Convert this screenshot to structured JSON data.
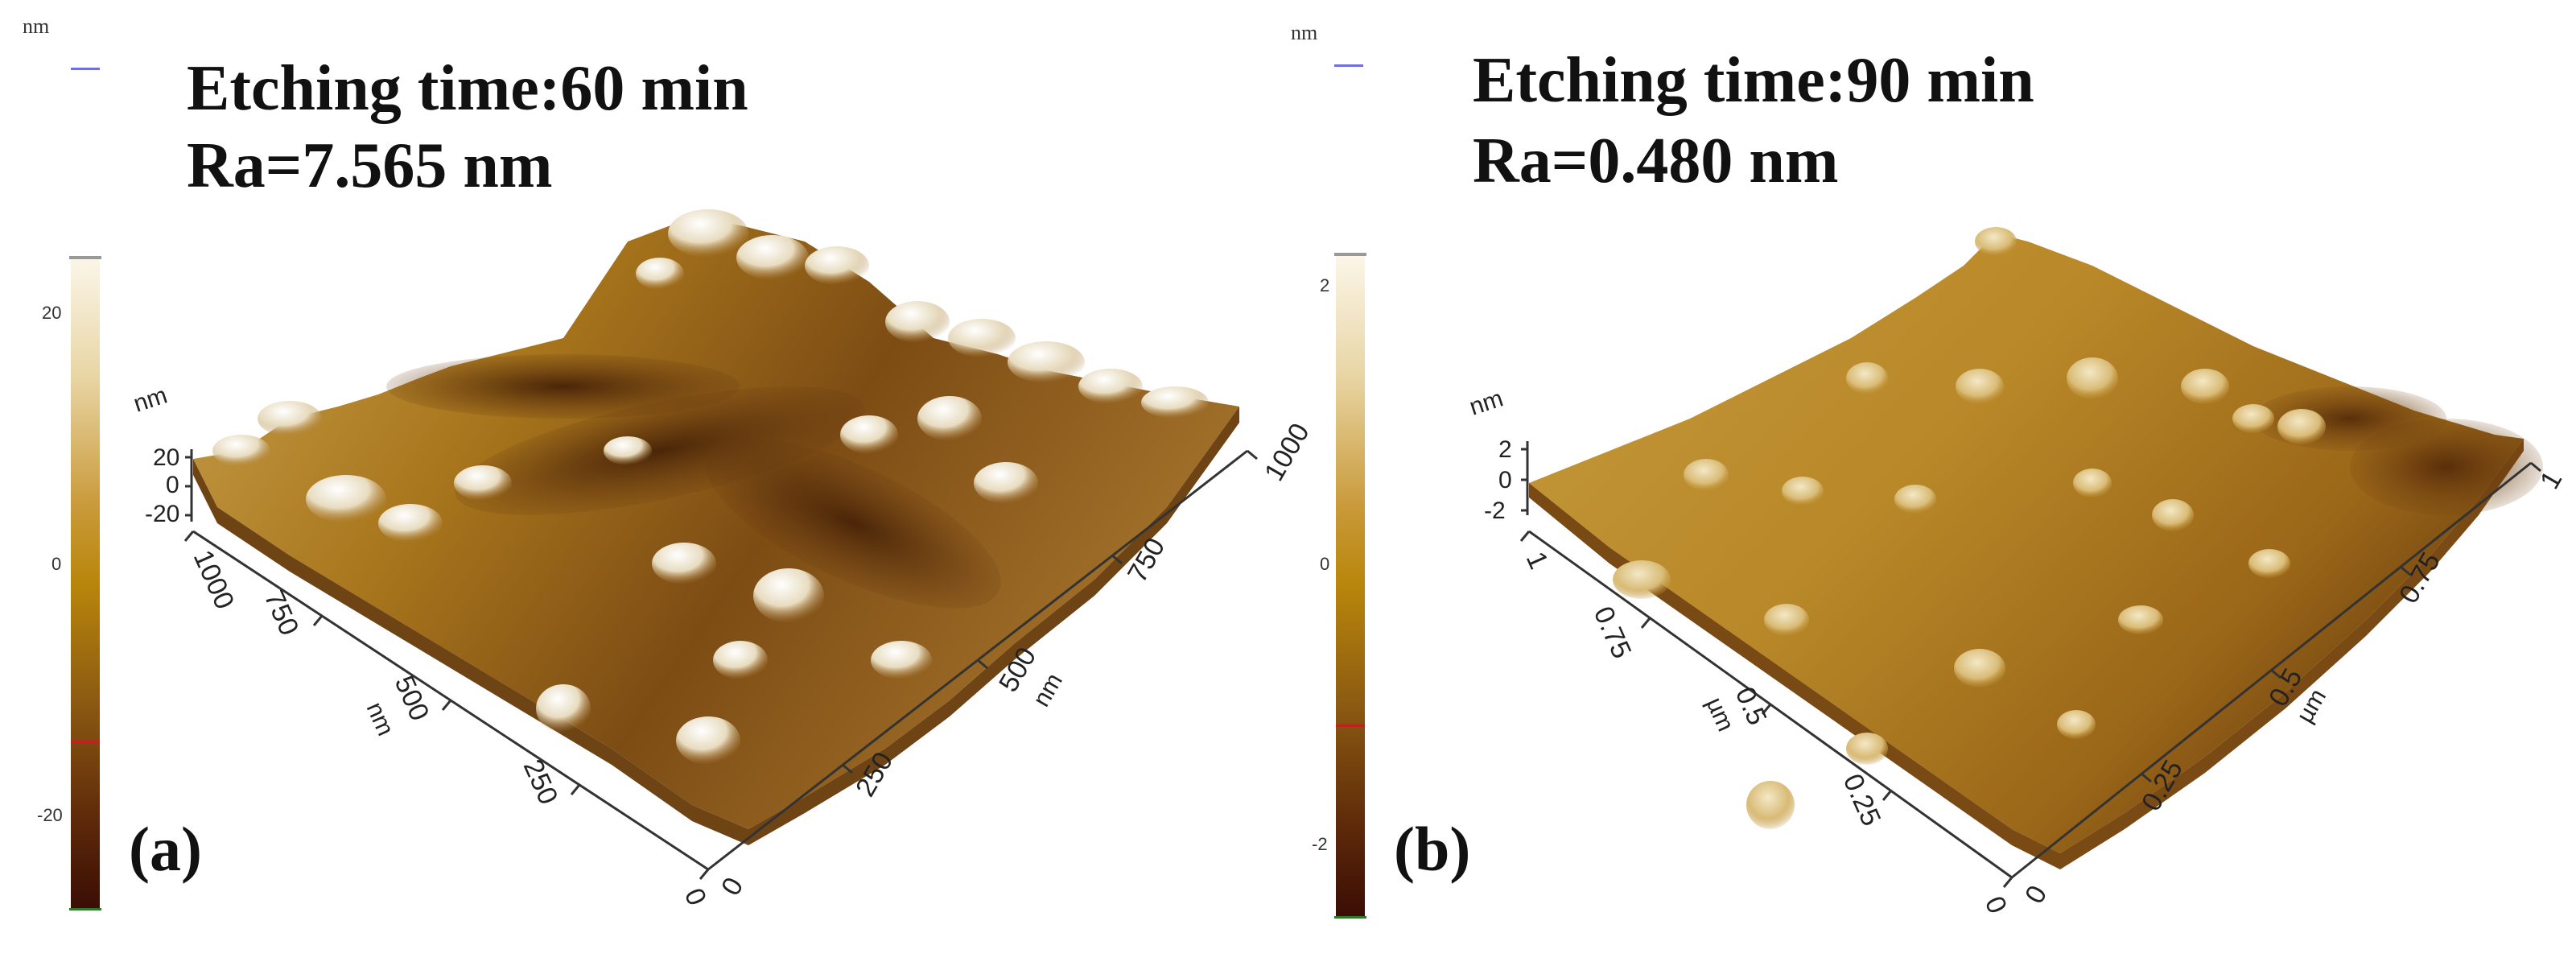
{
  "panels": [
    {
      "letter": "(a)",
      "title_line1": "Etching time:60 min",
      "title_line2": "Ra=7.565 nm",
      "unit_top_left": "nm",
      "colorbar_ticks": [
        "20",
        "0",
        "-20"
      ],
      "z_unit": "nm",
      "z_ticks": [
        "20",
        "0",
        "-20"
      ],
      "left_axis_title": "nm",
      "left_axis_ticks": [
        "1000",
        "750",
        "500",
        "250",
        "0"
      ],
      "right_axis_title": "nm",
      "right_axis_ticks": [
        "0",
        "250",
        "500",
        "750",
        "1000"
      ]
    },
    {
      "letter": "(b)",
      "title_line1": "Etching time:90 min",
      "title_line2": "Ra=0.480 nm",
      "unit_top_left": "nm",
      "colorbar_ticks": [
        "2",
        "0",
        "-2"
      ],
      "z_unit": "nm",
      "z_ticks": [
        "2",
        "0",
        "-2"
      ],
      "left_axis_title": "µm",
      "left_axis_ticks": [
        "1",
        "0.75",
        "0.5",
        "0.25",
        "0"
      ],
      "right_axis_title": "µm",
      "right_axis_ticks": [
        "0",
        "0.25",
        "0.5",
        "0.75",
        "1"
      ]
    }
  ],
  "colors": {
    "colorbar_top": "#fbf6e9",
    "colorbar_mid": "#b8860b",
    "colorbar_bottom": "#3a0d05",
    "surface_a_dark": "#5a3210",
    "surface_a_mid": "#a8761c",
    "surface_a_light": "#f5eedd",
    "surface_b_dark": "#6b3f10",
    "surface_b_mid": "#b98828",
    "surface_b_light": "#eee0b8"
  }
}
